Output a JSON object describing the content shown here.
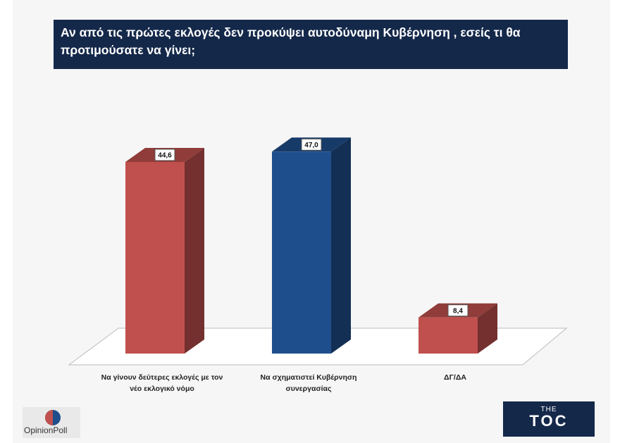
{
  "chart_data": {
    "type": "bar3d",
    "title": "Αν από τις πρώτες εκλογές δεν προκύψει αυτοδύναμη Κυβέρνηση , εσείς τι θα προτιμούσατε να γίνει;",
    "categories": [
      "Να γίνουν δεύτερες εκλογές με τον νέο εκλογικό νόμο",
      "Να σχηματιστεί Κυβέρνηση συνεργασίας",
      "ΔΓ/ΔΑ"
    ],
    "values": [
      44.6,
      47.0,
      8.4
    ],
    "value_labels": [
      "44,6",
      "47,0",
      "8,4"
    ],
    "colors": [
      "#c0504d",
      "#1f4e8c",
      "#c0504d"
    ]
  },
  "footer": {
    "source": "OpinionPoll",
    "brand_top": "THE",
    "brand": "TOC"
  }
}
